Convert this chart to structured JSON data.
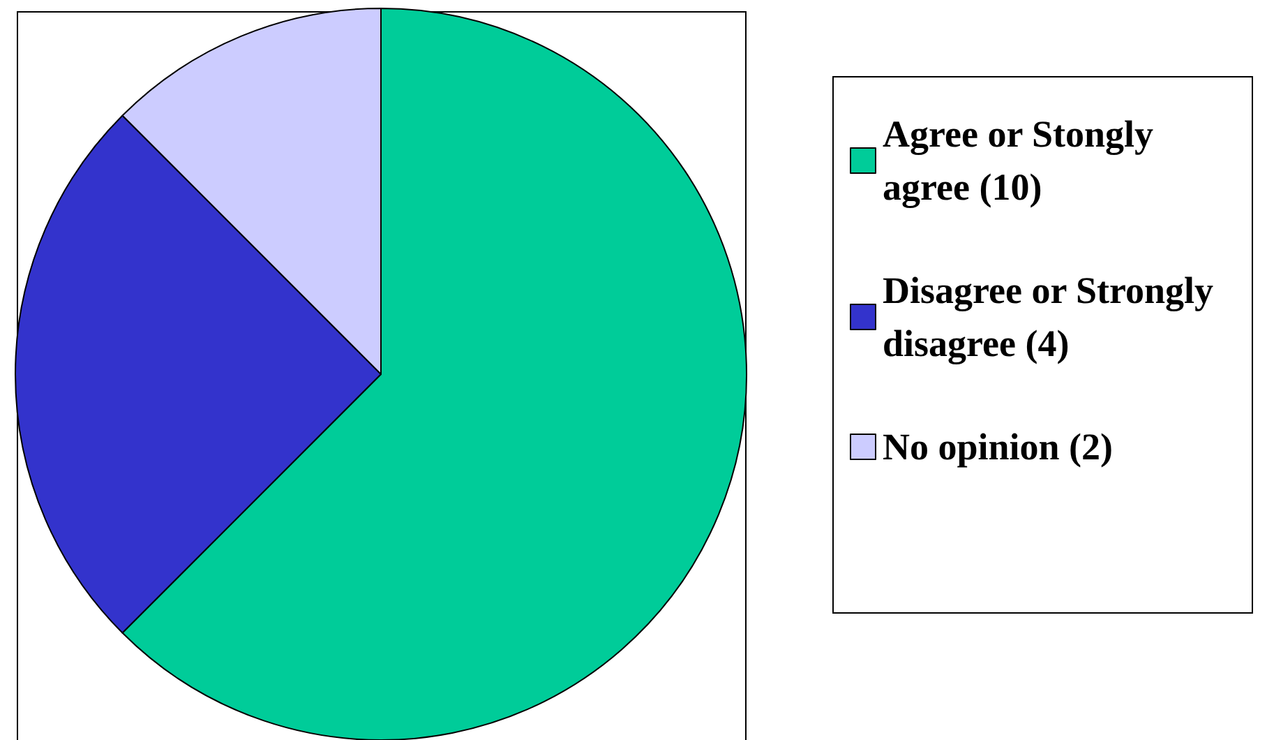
{
  "chart_data": {
    "type": "pie",
    "categories": [
      "Agree or Stongly agree (10)",
      "Disagree or Strongly disagree (4)",
      "No opinion (2)"
    ],
    "values": [
      10,
      4,
      2
    ],
    "colors": [
      "#00cc99",
      "#3333cc",
      "#ccccff"
    ],
    "legend": "right"
  }
}
